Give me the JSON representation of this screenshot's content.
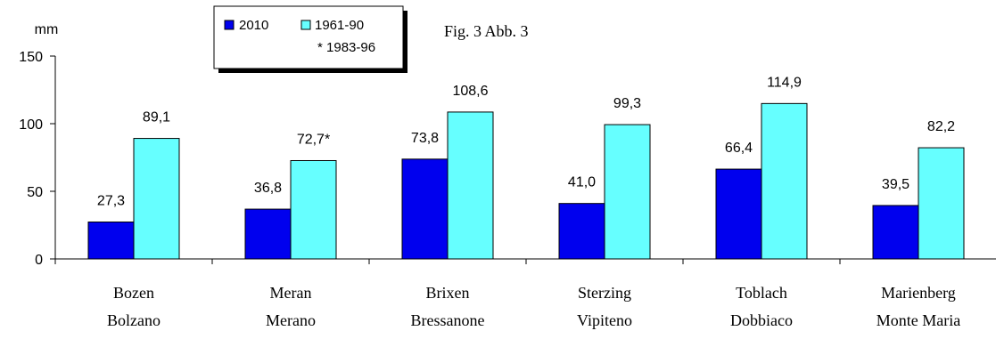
{
  "chart_data": {
    "type": "bar",
    "unit_label": "mm",
    "figure_caption": "Fig. 3   Abb. 3",
    "categories": [
      [
        "Bozen",
        "Bolzano"
      ],
      [
        "Meran",
        "Merano"
      ],
      [
        "Brixen",
        "Bressanone"
      ],
      [
        "Sterzing",
        "Vipiteno"
      ],
      [
        "Toblach",
        "Dobbiaco"
      ],
      [
        "Marienberg",
        "Monte Maria"
      ]
    ],
    "series": [
      {
        "name": "2010",
        "color": "#0000ee",
        "values": [
          27.3,
          36.8,
          73.8,
          41.0,
          66.4,
          39.5
        ],
        "labels": [
          "27,3",
          "36,8",
          "73,8",
          "41,0",
          "66,4",
          "39,5"
        ]
      },
      {
        "name": "1961-90",
        "color": "#66ffff",
        "values": [
          89.1,
          72.7,
          108.6,
          99.3,
          114.9,
          82.2
        ],
        "labels": [
          "89,1",
          "72,7*",
          "108,6",
          "99,3",
          "114,9",
          "82,2"
        ]
      }
    ],
    "legend_note": "* 1983-96",
    "ylim": [
      0,
      150
    ],
    "yticks": [
      0,
      50,
      100,
      150
    ],
    "legend_position": "top-center",
    "grid": false
  }
}
